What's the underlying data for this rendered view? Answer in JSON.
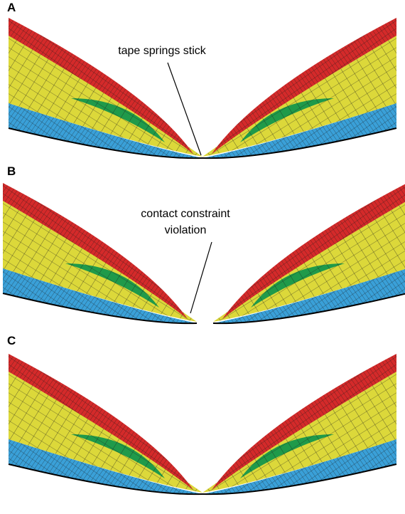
{
  "panels": [
    {
      "label": "A",
      "annotation": [
        "tape springs stick"
      ]
    },
    {
      "label": "B",
      "annotation": [
        "contact constraint",
        "violation"
      ]
    },
    {
      "label": "C"
    }
  ]
}
